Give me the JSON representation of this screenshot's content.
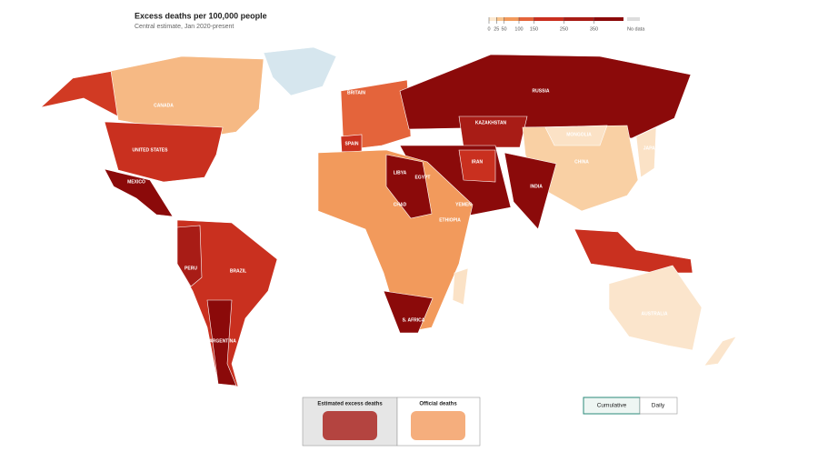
{
  "header": {
    "title": "Excess deaths per 100,000 people",
    "subtitle": "Central estimate, Jan 2020-present"
  },
  "legend": {
    "ticks": [
      0,
      25,
      50,
      100,
      150,
      250,
      350
    ],
    "no_data": "No data"
  },
  "country_labels": [
    "CANADA",
    "UNITED STATES",
    "MEXICO",
    "PERU",
    "BRAZIL",
    "ARGENTINA",
    "BRITAIN",
    "SPAIN",
    "LIBYA",
    "EGYPT",
    "CHAD",
    "ETHIOPIA",
    "S. AFRICA",
    "IRAN",
    "INDIA",
    "KAZAKHSTAN",
    "RUSSIA",
    "MONGOLIA",
    "CHINA",
    "JAPAN",
    "YEMEN",
    "AUSTRALIA"
  ],
  "views": [
    "Estimated excess deaths",
    "Official deaths"
  ],
  "modes": [
    "Cumulative",
    "Daily"
  ]
}
